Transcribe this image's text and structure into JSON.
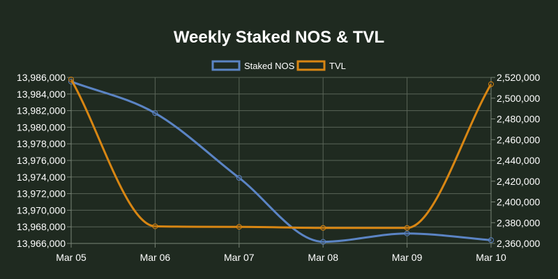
{
  "chart_data": {
    "type": "line",
    "title": "Weekly Staked NOS & TVL",
    "categories": [
      "Mar 05",
      "Mar 06",
      "Mar 07",
      "Mar 08",
      "Mar 09",
      "Mar 10"
    ],
    "series": [
      {
        "name": "Staked NOS",
        "axis": "left",
        "color": "#5b84c4",
        "values": [
          13985500,
          13981700,
          13973900,
          13966200,
          13967200,
          13966400
        ]
      },
      {
        "name": "TVL",
        "axis": "right",
        "color": "#d88613",
        "values": [
          2518000,
          2376500,
          2376000,
          2375000,
          2375000,
          2513500
        ]
      }
    ],
    "y_left": {
      "min": 13966000,
      "max": 13986000,
      "step": 2000,
      "tick_labels": [
        "13,966,000",
        "13,968,000",
        "13,970,000",
        "13,972,000",
        "13,974,000",
        "13,976,000",
        "13,978,000",
        "13,980,000",
        "13,982,000",
        "13,984,000",
        "13,986,000"
      ]
    },
    "y_right": {
      "min": 2360000,
      "max": 2520000,
      "step": 20000,
      "tick_labels": [
        "2,360,000",
        "2,380,000",
        "2,400,000",
        "2,420,000",
        "2,440,000",
        "2,460,000",
        "2,480,000",
        "2,500,000",
        "2,520,000"
      ]
    },
    "legend_position": "top",
    "grid": true
  }
}
